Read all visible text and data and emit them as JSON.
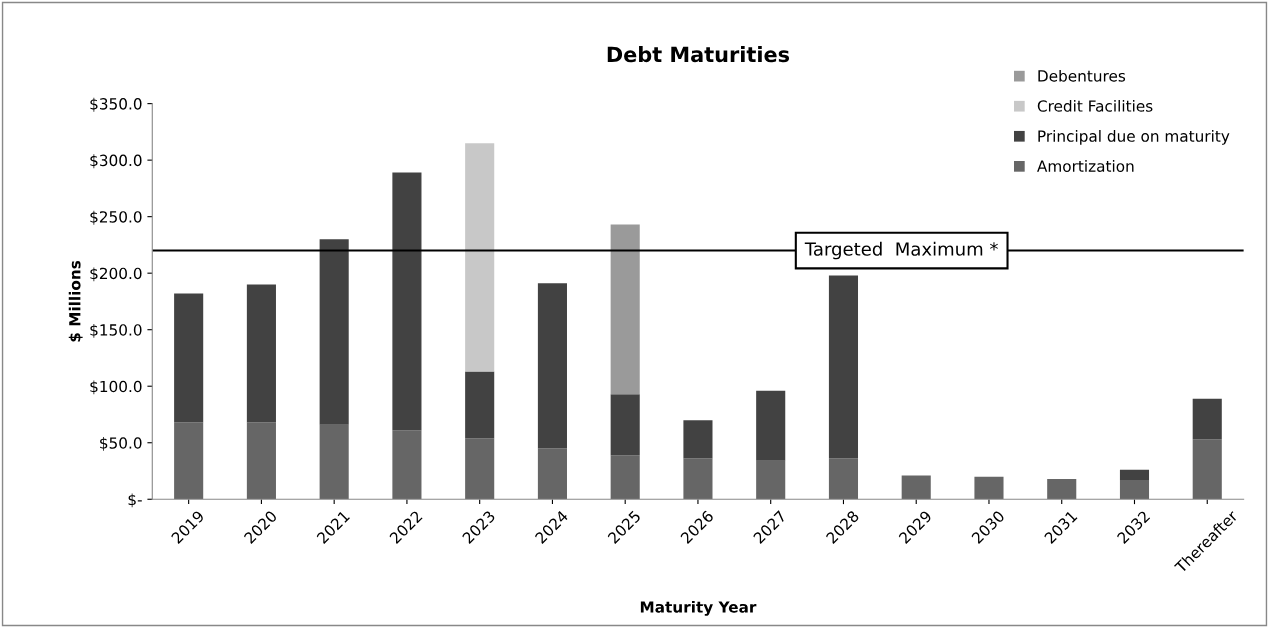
{
  "chart_data": {
    "type": "bar",
    "stacked": true,
    "title": "Debt Maturities",
    "xlabel": "Maturity Year",
    "ylabel": "$ Millions",
    "categories": [
      "2019",
      "2020",
      "2021",
      "2022",
      "2023",
      "2024",
      "2025",
      "2026",
      "2027",
      "2028",
      "2029",
      "2030",
      "2031",
      "2032",
      "Thereafter"
    ],
    "series": [
      {
        "name": "Amortization",
        "color": "#666666",
        "values": [
          68,
          68,
          66,
          61,
          54,
          45,
          39,
          36,
          34,
          36,
          21,
          20,
          18,
          17,
          53
        ]
      },
      {
        "name": "Principal due on maturity",
        "color": "#424242",
        "values": [
          114,
          122,
          164,
          228,
          59,
          146,
          54,
          34,
          62,
          162,
          null,
          null,
          null,
          9,
          36
        ]
      },
      {
        "name": "Credit Facilities",
        "color": "#c8c8c8",
        "values": [
          null,
          null,
          null,
          null,
          202,
          null,
          null,
          null,
          null,
          null,
          null,
          null,
          null,
          null,
          null
        ]
      },
      {
        "name": "Debentures",
        "color": "#9a9a9a",
        "values": [
          null,
          null,
          null,
          null,
          null,
          null,
          150,
          null,
          null,
          null,
          null,
          null,
          null,
          null,
          null
        ]
      }
    ],
    "ylim": [
      0,
      350
    ],
    "yticks": [
      {
        "value": 0,
        "label": "$-"
      },
      {
        "value": 50,
        "label": "$50.0"
      },
      {
        "value": 100,
        "label": "$100.0"
      },
      {
        "value": 150,
        "label": "$150.0"
      },
      {
        "value": 200,
        "label": "$200.0"
      },
      {
        "value": 250,
        "label": "$250.0"
      },
      {
        "value": 300,
        "label": "$300.0"
      },
      {
        "value": 350,
        "label": "$350.0"
      }
    ],
    "ref_lines": [
      {
        "axis": "y",
        "value": 220,
        "label": "Targeted  Maximum *",
        "color": "#000000"
      }
    ],
    "grid": false,
    "legend": "top right"
  }
}
